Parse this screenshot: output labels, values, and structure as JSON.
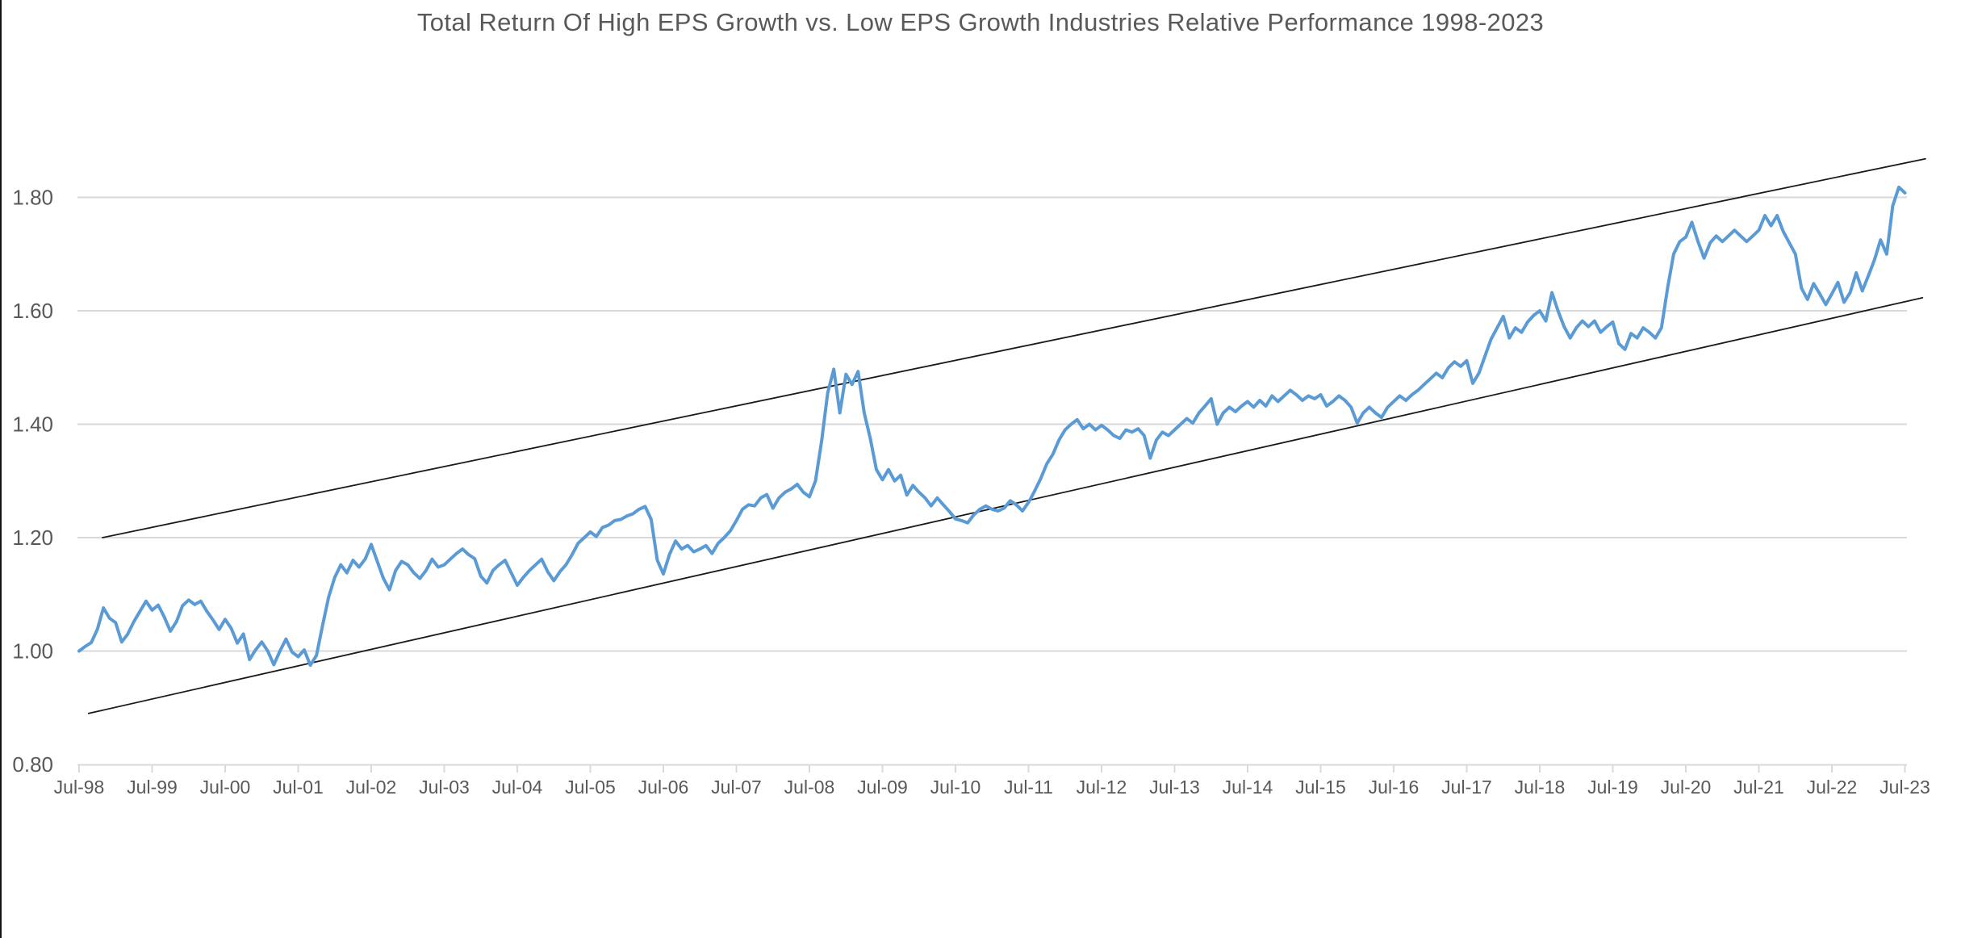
{
  "page": {
    "background": "#ffffff",
    "border_left_color": "#141414"
  },
  "chart_data": {
    "type": "line",
    "title": "Total Return Of High EPS Growth vs. Low EPS Growth Industries Relative Performance 1998-2023",
    "title_color": "#595959",
    "xlabel": "",
    "ylabel": "",
    "grid": "horizontal",
    "legend": "none",
    "axis_color": "#D9D9D9",
    "tick_label_color": "#595959",
    "ylim": [
      0.8,
      1.9
    ],
    "y_ticks": [
      0.8,
      1.0,
      1.2,
      1.4,
      1.6,
      1.8
    ],
    "y_tick_labels": [
      "0.80",
      "1.00",
      "1.20",
      "1.40",
      "1.60",
      "1.80"
    ],
    "x_tick_labels": [
      "Jul-98",
      "Jul-99",
      "Jul-00",
      "Jul-01",
      "Jul-02",
      "Jul-03",
      "Jul-04",
      "Jul-05",
      "Jul-06",
      "Jul-07",
      "Jul-08",
      "Jul-09",
      "Jul-10",
      "Jul-11",
      "Jul-12",
      "Jul-13",
      "Jul-14",
      "Jul-15",
      "Jul-16",
      "Jul-17",
      "Jul-18",
      "Jul-19",
      "Jul-20",
      "Jul-21",
      "Jul-22",
      "Jul-23"
    ],
    "series": [
      {
        "name": "high-vs-low-eps-growth-relative-performance",
        "color": "#5B9BD5",
        "stroke_width": 4,
        "frequency": "monthly",
        "start": "Jul-98",
        "end": "Jul-23",
        "values": [
          1.0,
          1.008,
          1.015,
          1.038,
          1.076,
          1.058,
          1.05,
          1.016,
          1.03,
          1.052,
          1.07,
          1.088,
          1.072,
          1.081,
          1.06,
          1.035,
          1.052,
          1.08,
          1.09,
          1.082,
          1.088,
          1.07,
          1.055,
          1.038,
          1.056,
          1.04,
          1.014,
          1.03,
          0.985,
          1.002,
          1.016,
          1.0,
          0.976,
          1.0,
          1.021,
          0.998,
          0.99,
          1.002,
          0.975,
          0.992,
          1.045,
          1.095,
          1.13,
          1.152,
          1.138,
          1.16,
          1.148,
          1.162,
          1.188,
          1.158,
          1.128,
          1.108,
          1.142,
          1.158,
          1.152,
          1.138,
          1.128,
          1.142,
          1.162,
          1.148,
          1.152,
          1.162,
          1.172,
          1.18,
          1.17,
          1.163,
          1.132,
          1.12,
          1.142,
          1.152,
          1.16,
          1.138,
          1.116,
          1.13,
          1.142,
          1.152,
          1.162,
          1.14,
          1.124,
          1.14,
          1.152,
          1.17,
          1.19,
          1.2,
          1.21,
          1.202,
          1.218,
          1.222,
          1.23,
          1.232,
          1.238,
          1.242,
          1.25,
          1.255,
          1.232,
          1.16,
          1.136,
          1.17,
          1.194,
          1.18,
          1.186,
          1.175,
          1.18,
          1.186,
          1.172,
          1.19,
          1.2,
          1.212,
          1.23,
          1.25,
          1.258,
          1.256,
          1.27,
          1.276,
          1.252,
          1.27,
          1.28,
          1.286,
          1.294,
          1.28,
          1.272,
          1.3,
          1.37,
          1.455,
          1.497,
          1.42,
          1.488,
          1.47,
          1.493,
          1.42,
          1.375,
          1.32,
          1.302,
          1.32,
          1.3,
          1.31,
          1.275,
          1.292,
          1.28,
          1.27,
          1.256,
          1.27,
          1.258,
          1.246,
          1.233,
          1.23,
          1.226,
          1.24,
          1.25,
          1.256,
          1.25,
          1.247,
          1.252,
          1.265,
          1.258,
          1.247,
          1.262,
          1.282,
          1.304,
          1.33,
          1.347,
          1.372,
          1.39,
          1.4,
          1.408,
          1.392,
          1.4,
          1.39,
          1.398,
          1.39,
          1.38,
          1.375,
          1.39,
          1.386,
          1.392,
          1.38,
          1.34,
          1.372,
          1.386,
          1.38,
          1.39,
          1.4,
          1.41,
          1.402,
          1.42,
          1.432,
          1.445,
          1.4,
          1.42,
          1.43,
          1.422,
          1.432,
          1.44,
          1.43,
          1.442,
          1.432,
          1.45,
          1.44,
          1.45,
          1.46,
          1.452,
          1.442,
          1.45,
          1.445,
          1.452,
          1.432,
          1.44,
          1.45,
          1.442,
          1.43,
          1.402,
          1.42,
          1.43,
          1.42,
          1.412,
          1.43,
          1.44,
          1.45,
          1.442,
          1.452,
          1.46,
          1.47,
          1.48,
          1.49,
          1.482,
          1.5,
          1.51,
          1.502,
          1.512,
          1.472,
          1.49,
          1.52,
          1.55,
          1.57,
          1.59,
          1.552,
          1.57,
          1.562,
          1.58,
          1.592,
          1.6,
          1.582,
          1.632,
          1.6,
          1.572,
          1.552,
          1.57,
          1.582,
          1.572,
          1.582,
          1.562,
          1.572,
          1.58,
          1.542,
          1.532,
          1.56,
          1.552,
          1.57,
          1.562,
          1.552,
          1.57,
          1.64,
          1.7,
          1.722,
          1.73,
          1.756,
          1.722,
          1.693,
          1.72,
          1.732,
          1.722,
          1.732,
          1.742,
          1.732,
          1.722,
          1.732,
          1.742,
          1.768,
          1.75,
          1.768,
          1.74,
          1.72,
          1.7,
          1.64,
          1.62,
          1.648,
          1.63,
          1.611,
          1.63,
          1.65,
          1.615,
          1.632,
          1.667,
          1.635,
          1.662,
          1.69,
          1.725,
          1.7,
          1.785,
          1.818,
          1.808
        ]
      }
    ],
    "channel_lines": [
      {
        "name": "upper-channel-line",
        "color": "#1a1a1a",
        "stroke_width": 1.8,
        "points": [
          {
            "t_years": 0.32,
            "value": 1.2
          },
          {
            "t_years": 25.28,
            "value": 1.868
          }
        ]
      },
      {
        "name": "lower-channel-line",
        "color": "#1a1a1a",
        "stroke_width": 1.8,
        "points": [
          {
            "t_years": 0.13,
            "value": 0.89
          },
          {
            "t_years": 25.24,
            "value": 1.623
          }
        ]
      }
    ]
  }
}
